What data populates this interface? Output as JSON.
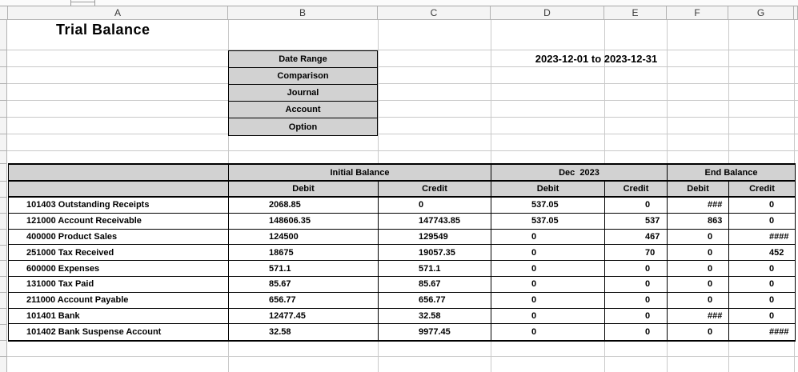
{
  "sheet": {
    "column_headers": [
      "A",
      "B",
      "C",
      "D",
      "E",
      "F",
      "G"
    ],
    "title": "Trial Balance",
    "form": {
      "rows": [
        {
          "label": "Date Range",
          "value": "2023-12-01 to 2023-12-31"
        },
        {
          "label": "Comparison",
          "value": ""
        },
        {
          "label": "Journal",
          "value": ""
        },
        {
          "label": "Account",
          "value": ""
        },
        {
          "label": "Option",
          "value": ""
        }
      ]
    },
    "table": {
      "group_headers": [
        "Initial Balance",
        "Dec  2023",
        "End Balance"
      ],
      "sub_headers": [
        "Debit",
        "Credit",
        "Debit",
        "Credit",
        "Debit",
        "Credit"
      ],
      "rows": [
        {
          "account": "101403 Outstanding Receipts",
          "values": [
            "2068.85",
            "0",
            "537.05",
            "0",
            "###",
            "0"
          ]
        },
        {
          "account": "121000 Account Receivable",
          "values": [
            "148606.35",
            "147743.85",
            "537.05",
            "537",
            "863",
            "0"
          ]
        },
        {
          "account": "400000 Product Sales",
          "values": [
            "124500",
            "129549",
            "0",
            "467",
            "0",
            "####"
          ]
        },
        {
          "account": "251000 Tax Received",
          "values": [
            "18675",
            "19057.35",
            "0",
            "70",
            "0",
            "452"
          ]
        },
        {
          "account": "600000 Expenses",
          "values": [
            "571.1",
            "571.1",
            "0",
            "0",
            "0",
            "0"
          ]
        },
        {
          "account": "131000 Tax Paid",
          "values": [
            "85.67",
            "85.67",
            "0",
            "0",
            "0",
            "0"
          ]
        },
        {
          "account": "211000 Account Payable",
          "values": [
            "656.77",
            "656.77",
            "0",
            "0",
            "0",
            "0"
          ]
        },
        {
          "account": "101401 Bank",
          "values": [
            "12477.45",
            "32.58",
            "0",
            "0",
            "###",
            "0"
          ]
        },
        {
          "account": "101402 Bank Suspense Account",
          "values": [
            "32.58",
            "9977.45",
            "0",
            "0",
            "0",
            "####"
          ]
        }
      ]
    },
    "colors": {
      "header_gray": "#d2d2d2",
      "grid": "#c9c9c9",
      "panel_gray": "#f4f4f4",
      "border_black": "#000000"
    }
  }
}
